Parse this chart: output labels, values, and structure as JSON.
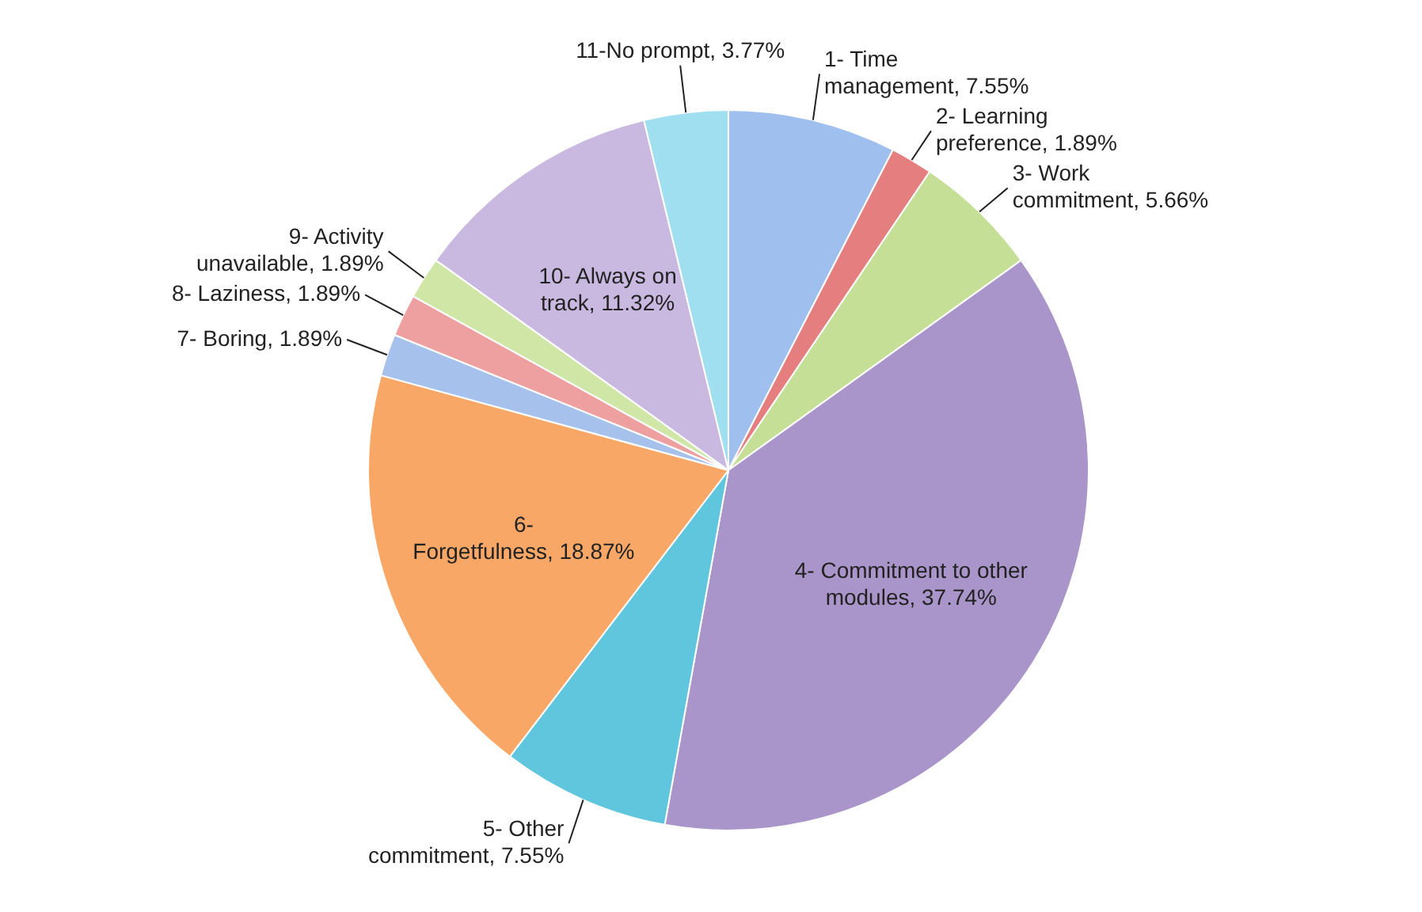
{
  "chart_data": {
    "type": "pie",
    "categories": [
      "1- Time management",
      "2- Learning preference",
      "3- Work commitment",
      "4- Commitment to other modules",
      "5- Other commitment",
      "6- Forgetfulness",
      "7- Boring",
      "8- Laziness",
      "9- Activity unavailable",
      "10- Always on track",
      "11-No prompt"
    ],
    "values": [
      7.55,
      1.89,
      5.66,
      37.74,
      7.55,
      18.87,
      1.89,
      1.89,
      1.89,
      11.32,
      3.77
    ],
    "value_labels": [
      ", 7.55%",
      ", 1.89%",
      ", 5.66%",
      ", 37.74%",
      ", 7.55%",
      ", 18.87%",
      ", 1.89%",
      ", 1.89%",
      ", 1.89%",
      ", 11.32%",
      ", 3.77%"
    ],
    "colors": [
      "#9fbfee",
      "#e57f7f",
      "#c6df96",
      "#a995c9",
      "#5fc6dd",
      "#f9a766",
      "#a6c2ec",
      "#eea0a0",
      "#cfe6a6",
      "#c9b9e0",
      "#9fdff0"
    ],
    "legend": false
  }
}
